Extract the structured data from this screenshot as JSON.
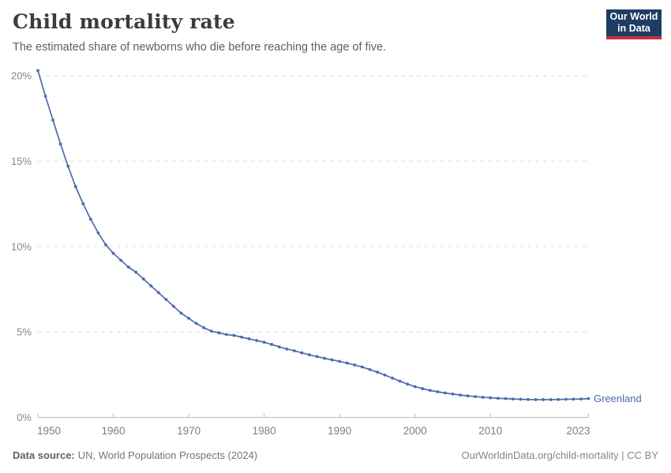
{
  "header": {
    "title": "Child mortality rate",
    "subtitle": "The estimated share of newborns who die before reaching the age of five.",
    "logo": {
      "line1": "Our World",
      "line2": "in Data",
      "bg_color": "#1d3d63",
      "accent_color": "#c4323f"
    }
  },
  "chart_data": {
    "type": "line",
    "title": "Child mortality rate",
    "xlabel": "",
    "ylabel": "",
    "xlim": [
      1950,
      2023
    ],
    "ylim": [
      0,
      20.3
    ],
    "x_ticks": [
      1950,
      1960,
      1970,
      1980,
      1990,
      2000,
      2010,
      2023
    ],
    "y_ticks": [
      0,
      5,
      10,
      15,
      20
    ],
    "y_tick_suffix": "%",
    "grid": "dashed-horizontal",
    "legend_position": "end-of-line",
    "axis_color": "#b9b9b9",
    "grid_color": "#dedede",
    "tick_label_color": "#878787",
    "series": [
      {
        "name": "Greenland",
        "color": "#4c6ba9",
        "x": [
          1950,
          1951,
          1952,
          1953,
          1954,
          1955,
          1956,
          1957,
          1958,
          1959,
          1960,
          1961,
          1962,
          1963,
          1964,
          1965,
          1966,
          1967,
          1968,
          1969,
          1970,
          1971,
          1972,
          1973,
          1974,
          1975,
          1976,
          1977,
          1978,
          1979,
          1980,
          1981,
          1982,
          1983,
          1984,
          1985,
          1986,
          1987,
          1988,
          1989,
          1990,
          1991,
          1992,
          1993,
          1994,
          1995,
          1996,
          1997,
          1998,
          1999,
          2000,
          2001,
          2002,
          2003,
          2004,
          2005,
          2006,
          2007,
          2008,
          2009,
          2010,
          2011,
          2012,
          2013,
          2014,
          2015,
          2016,
          2017,
          2018,
          2019,
          2020,
          2021,
          2022,
          2023
        ],
        "values": [
          20.3,
          18.8,
          17.4,
          16.0,
          14.7,
          13.5,
          12.5,
          11.6,
          10.8,
          10.1,
          9.6,
          9.2,
          8.8,
          8.5,
          8.1,
          7.7,
          7.3,
          6.9,
          6.5,
          6.1,
          5.8,
          5.5,
          5.25,
          5.05,
          4.95,
          4.85,
          4.8,
          4.7,
          4.6,
          4.5,
          4.4,
          4.27,
          4.13,
          4.0,
          3.9,
          3.78,
          3.66,
          3.56,
          3.46,
          3.37,
          3.28,
          3.18,
          3.07,
          2.95,
          2.8,
          2.65,
          2.48,
          2.3,
          2.12,
          1.95,
          1.8,
          1.68,
          1.58,
          1.5,
          1.43,
          1.37,
          1.31,
          1.26,
          1.22,
          1.18,
          1.15,
          1.12,
          1.1,
          1.08,
          1.06,
          1.05,
          1.04,
          1.04,
          1.04,
          1.05,
          1.06,
          1.07,
          1.08,
          1.1
        ]
      }
    ]
  },
  "footer": {
    "source_label": "Data source:",
    "source_text": "UN, World Population Prospects (2024)",
    "link_text": "OurWorldinData.org/child-mortality | CC BY"
  }
}
